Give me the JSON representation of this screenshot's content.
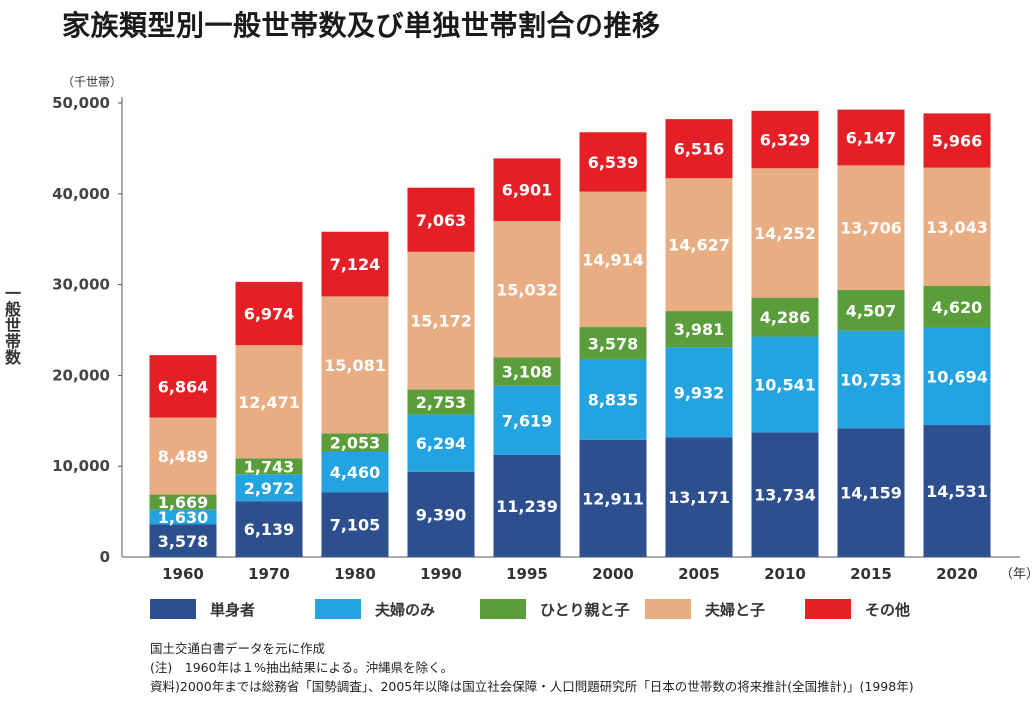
{
  "title": "家族類型別一般世帯数及び単独世帯割合の推移",
  "colors": {
    "単身者": "#2d4f8e",
    "夫婦のみ": "#23a3df",
    "ひとり親と子": "#5a9e3c",
    "夫婦と子": "#e9ad84",
    "その他": "#e41f26",
    "axis": "#555555",
    "label_light": "#ffffff"
  },
  "chart_data": {
    "type": "bar",
    "stacked": true,
    "title": "家族類型別一般世帯数及び単独世帯割合の推移",
    "ylabel": "一般世帯数",
    "yunit": "（千世帯）",
    "xunit": "（年）",
    "ylim": [
      0,
      50000
    ],
    "yticks": [
      0,
      10000,
      20000,
      30000,
      40000,
      50000
    ],
    "ytick_labels": [
      "0",
      "10,000",
      "20,000",
      "30,000",
      "40,000",
      "50,000"
    ],
    "categories": [
      "1960",
      "1970",
      "1980",
      "1990",
      "1995",
      "2000",
      "2005",
      "2010",
      "2015",
      "2020"
    ],
    "series": [
      {
        "name": "単身者",
        "values": [
          3578,
          6139,
          7105,
          9390,
          11239,
          12911,
          13171,
          13734,
          14159,
          14531
        ],
        "labels": [
          "3,578",
          "6,139",
          "7,105",
          "9,390",
          "11,239",
          "12,911",
          "13,171",
          "13,734",
          "14,159",
          "14,531"
        ]
      },
      {
        "name": "夫婦のみ",
        "values": [
          1630,
          2972,
          4460,
          6294,
          7619,
          8835,
          9932,
          10541,
          10753,
          10694
        ],
        "labels": [
          "1,630",
          "2,972",
          "4,460",
          "6,294",
          "7,619",
          "8,835",
          "9,932",
          "10,541",
          "10,753",
          "10,694"
        ]
      },
      {
        "name": "ひとり親と子",
        "values": [
          1669,
          1743,
          2053,
          2753,
          3108,
          3578,
          3981,
          4286,
          4507,
          4620
        ],
        "labels": [
          "1,669",
          "1,743",
          "2,053",
          "2,753",
          "3,108",
          "3,578",
          "3,981",
          "4,286",
          "4,507",
          "4,620"
        ]
      },
      {
        "name": "夫婦と子",
        "values": [
          8489,
          12471,
          15081,
          15172,
          15032,
          14914,
          14627,
          14252,
          13706,
          13043
        ],
        "labels": [
          "8,489",
          "12,471",
          "15,081",
          "15,172",
          "15,032",
          "14,914",
          "14,627",
          "14,252",
          "13,706",
          "13,043"
        ]
      },
      {
        "name": "その他",
        "values": [
          6864,
          6974,
          7124,
          7063,
          6901,
          6539,
          6516,
          6329,
          6147,
          5966
        ],
        "labels": [
          "6,864",
          "6,974",
          "7,124",
          "7,063",
          "6,901",
          "6,539",
          "6,516",
          "6,329",
          "6,147",
          "5,966"
        ]
      }
    ],
    "legend": [
      "単身者",
      "夫婦のみ",
      "ひとり親と子",
      "夫婦と子",
      "その他"
    ],
    "legend_position": "bottom",
    "grid": false
  },
  "notes": [
    "国土交通白書データを元に作成",
    "(注)　1960年は１%抽出結果による。沖縄県を除く。",
    "資料)2000年までは総務省「国勢調査」、2005年以降は国立社会保障・人口問題研究所「日本の世帯数の将来推計(全国推計)」(1998年)"
  ]
}
